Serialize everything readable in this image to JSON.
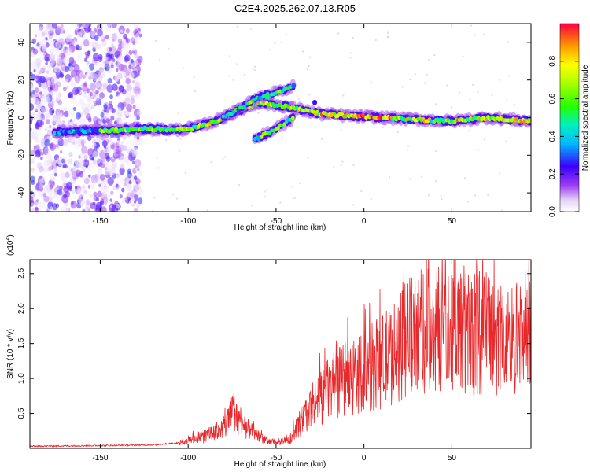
{
  "title": "C2E4.2025.262.07.13.R05",
  "chart_data": [
    {
      "type": "heatmap",
      "xlabel": "Height of straight line (km)",
      "ylabel": "Frequency (Hz)",
      "xlim": [
        -190,
        95
      ],
      "ylim": [
        -50,
        50
      ],
      "xticks": [
        -150,
        -100,
        -50,
        0,
        50
      ],
      "yticks": [
        -40,
        -20,
        0,
        20,
        40
      ],
      "xtick_labels": [
        "-150",
        "-100",
        "-50",
        "0",
        "50"
      ],
      "ytick_labels": [
        "-40",
        "-20",
        "0",
        "20",
        "40"
      ],
      "colorbar": {
        "label": "Normalized spectral amplitude",
        "range": [
          0,
          1
        ],
        "ticks": [
          0,
          0.2,
          0.4,
          0.6,
          0.8
        ],
        "tick_labels": [
          "0.0",
          "0.2",
          "0.4",
          "0.6",
          "0.8"
        ]
      },
      "features": {
        "noise_region_x": [
          -190,
          -127
        ],
        "main_trace": [
          [
            -175,
            -7.5
          ],
          [
            -150,
            -7
          ],
          [
            -125,
            -6
          ],
          [
            -105,
            -6.5
          ],
          [
            -95,
            -5
          ],
          [
            -85,
            -2
          ],
          [
            -75,
            2
          ],
          [
            -68,
            5
          ],
          [
            -60,
            8
          ],
          [
            -45,
            6
          ],
          [
            -35,
            4
          ],
          [
            -25,
            2
          ],
          [
            -10,
            1
          ],
          [
            10,
            0
          ],
          [
            30,
            -1
          ],
          [
            50,
            -2
          ],
          [
            70,
            0
          ],
          [
            95,
            -2
          ]
        ],
        "upper_branch": [
          [
            -80,
            0
          ],
          [
            -70,
            5
          ],
          [
            -62,
            10
          ],
          [
            -55,
            12
          ],
          [
            -48,
            14
          ],
          [
            -40,
            17
          ]
        ],
        "lower_branch": [
          [
            -62,
            -11
          ],
          [
            -56,
            -9
          ],
          [
            -50,
            -6
          ],
          [
            -45,
            -3
          ],
          [
            -40,
            0
          ]
        ]
      }
    },
    {
      "type": "line",
      "xlabel": "Height of straight line (km)",
      "ylabel": "SNR (10 * v/v)",
      "y_multiplier_label": "(x10",
      "y_multiplier_exp": "4",
      "xlim": [
        -190,
        95
      ],
      "ylim": [
        0,
        2.7
      ],
      "xticks": [
        -150,
        -100,
        -50,
        0,
        50
      ],
      "yticks": [
        0.5,
        1.0,
        1.5,
        2.0,
        2.5
      ],
      "xtick_labels": [
        "-150",
        "-100",
        "-50",
        "0",
        "50"
      ],
      "ytick_labels": [
        "0.5",
        "1.0",
        "1.5",
        "2.0",
        "2.5"
      ],
      "series_color": "#e8282b",
      "envelope": [
        [
          -190,
          0.03
        ],
        [
          -150,
          0.04
        ],
        [
          -120,
          0.05
        ],
        [
          -105,
          0.08
        ],
        [
          -95,
          0.15
        ],
        [
          -85,
          0.22
        ],
        [
          -78,
          0.35
        ],
        [
          -74,
          0.55
        ],
        [
          -70,
          0.4
        ],
        [
          -65,
          0.25
        ],
        [
          -55,
          0.1
        ],
        [
          -48,
          0.08
        ],
        [
          -42,
          0.15
        ],
        [
          -38,
          0.3
        ],
        [
          -30,
          0.6
        ],
        [
          -20,
          0.85
        ],
        [
          -10,
          1.0
        ],
        [
          0,
          1.1
        ],
        [
          10,
          1.25
        ],
        [
          20,
          1.4
        ],
        [
          25,
          1.6
        ],
        [
          30,
          1.65
        ],
        [
          40,
          1.7
        ],
        [
          50,
          1.75
        ],
        [
          60,
          1.7
        ],
        [
          70,
          1.65
        ],
        [
          80,
          1.55
        ],
        [
          95,
          1.5
        ]
      ]
    }
  ]
}
